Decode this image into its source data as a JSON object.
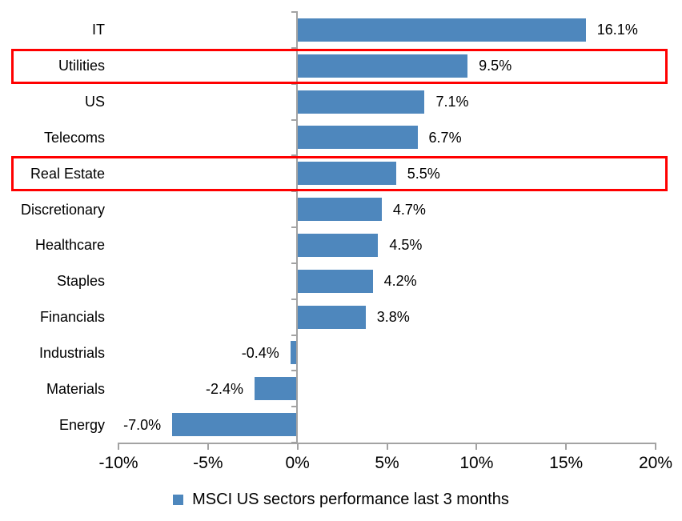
{
  "chart_data": {
    "type": "bar",
    "orientation": "horizontal",
    "title": "",
    "categories": [
      "IT",
      "Utilities",
      "US",
      "Telecoms",
      "Real Estate",
      "Discretionary",
      "Healthcare",
      "Staples",
      "Financials",
      "Industrials",
      "Materials",
      "Energy"
    ],
    "series": [
      {
        "name": "MSCI US sectors performance last 3 months",
        "values": [
          16.1,
          9.5,
          7.1,
          6.7,
          5.5,
          4.7,
          4.5,
          4.2,
          3.8,
          -0.4,
          -2.4,
          -7.0
        ]
      }
    ],
    "data_labels": [
      "16.1%",
      "9.5%",
      "7.1%",
      "6.7%",
      "5.5%",
      "4.7%",
      "4.5%",
      "4.2%",
      "3.8%",
      "-0.4%",
      "-2.4%",
      "-7.0%"
    ],
    "x_tick_labels": [
      "-10%",
      "-5%",
      "0%",
      "5%",
      "10%",
      "15%",
      "20%"
    ],
    "x_tick_values": [
      -10,
      -5,
      0,
      5,
      10,
      15,
      20
    ],
    "xlim": [
      -10,
      20
    ],
    "grid": false,
    "legend_position": "bottom-center",
    "legend_label": "MSCI US sectors performance last 3 months",
    "highlighted_categories": [
      "Utilities",
      "Real Estate"
    ],
    "colors": {
      "bar": "#4e87bd",
      "highlight_border": "#ff0000",
      "axis": "#a3a3a3",
      "text": "#000000",
      "background": "#ffffff"
    }
  }
}
